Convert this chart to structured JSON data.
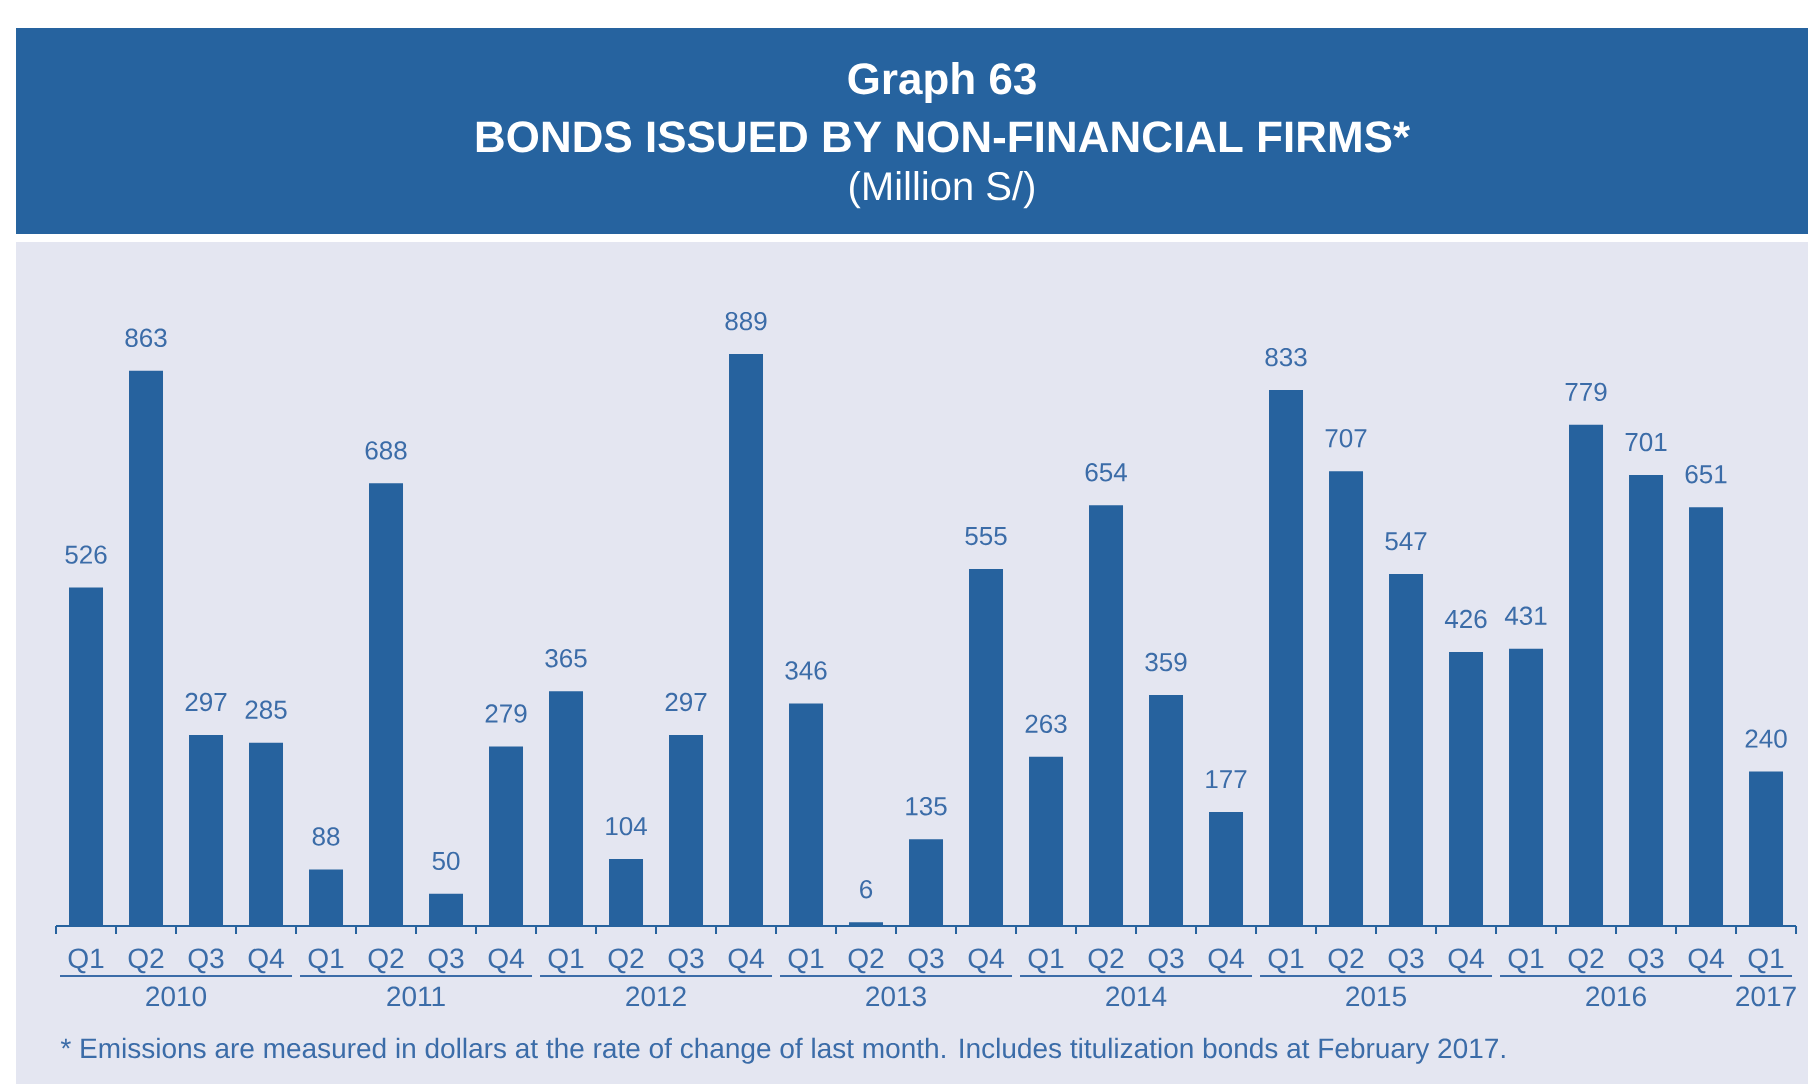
{
  "chart_data": {
    "type": "bar",
    "title": "Graph 63",
    "subtitle": "BONDS ISSUED BY NON-FINANCIAL FIRMS*",
    "ylabel": "(Million S/)",
    "categories": [
      "Q1",
      "Q2",
      "Q3",
      "Q4",
      "Q1",
      "Q2",
      "Q3",
      "Q4",
      "Q1",
      "Q2",
      "Q3",
      "Q4",
      "Q1",
      "Q2",
      "Q3",
      "Q4",
      "Q1",
      "Q2",
      "Q3",
      "Q4",
      "Q1",
      "Q2",
      "Q3",
      "Q4",
      "Q1",
      "Q2",
      "Q3",
      "Q4",
      "Q1"
    ],
    "values": [
      526,
      863,
      297,
      285,
      88,
      688,
      50,
      279,
      365,
      104,
      297,
      889,
      346,
      6,
      135,
      555,
      263,
      654,
      359,
      177,
      833,
      707,
      547,
      426,
      431,
      779,
      701,
      651,
      240
    ],
    "color": "#26629e",
    "data_labels": true,
    "annotations": [
      "2010",
      "2011",
      "2012",
      "2013",
      "2014",
      "2015",
      "2016",
      "2017",
      "* Emissions are measured in dollars at the rate of change of last month. Includes titulization bonds at February 2017."
    ]
  }
}
